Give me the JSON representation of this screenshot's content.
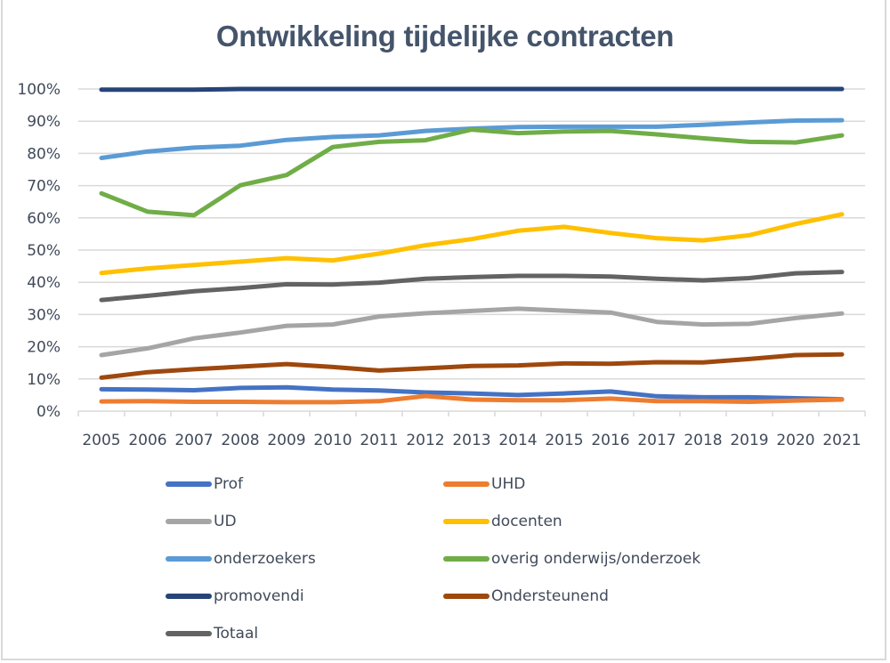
{
  "chart_data": {
    "type": "line",
    "title": "Ontwikkeling tijdelijke contracten",
    "xlabel": "",
    "ylabel": "",
    "ylim": [
      0,
      100
    ],
    "y_ticks": [
      "0%",
      "10%",
      "20%",
      "30%",
      "40%",
      "50%",
      "60%",
      "70%",
      "80%",
      "90%",
      "100%"
    ],
    "y_tick_values": [
      0,
      10,
      20,
      30,
      40,
      50,
      60,
      70,
      80,
      90,
      100
    ],
    "grid": true,
    "legend_position": "bottom",
    "categories": [
      "2005",
      "2006",
      "2007",
      "2008",
      "2009",
      "2010",
      "2011",
      "2012",
      "2013",
      "2014",
      "2015",
      "2016",
      "2017",
      "2018",
      "2019",
      "2020",
      "2021"
    ],
    "series": [
      {
        "name": "Prof",
        "color": "#4472c4",
        "values": [
          6.8,
          6.7,
          6.5,
          7.2,
          7.4,
          6.7,
          6.4,
          5.8,
          5.5,
          5.0,
          5.5,
          6.1,
          4.6,
          4.3,
          4.3,
          4.0,
          3.7
        ]
      },
      {
        "name": "UHD",
        "color": "#ed7d31",
        "values": [
          3.0,
          3.1,
          2.9,
          2.9,
          2.8,
          2.8,
          3.1,
          4.7,
          3.6,
          3.4,
          3.4,
          3.9,
          3.1,
          3.1,
          2.9,
          3.3,
          3.6
        ]
      },
      {
        "name": "UD",
        "color": "#a5a5a5",
        "values": [
          17.4,
          19.5,
          22.6,
          24.4,
          26.5,
          26.9,
          29.4,
          30.4,
          31.1,
          31.8,
          31.2,
          30.6,
          27.7,
          26.9,
          27.1,
          28.9,
          30.3
        ]
      },
      {
        "name": "docenten",
        "color": "#ffc000",
        "values": [
          42.9,
          44.3,
          45.4,
          46.4,
          47.5,
          46.8,
          48.9,
          51.5,
          53.4,
          56.0,
          57.2,
          55.3,
          53.7,
          53.0,
          54.6,
          58.1,
          61.1
        ]
      },
      {
        "name": "onderzoekers",
        "color": "#5b9bd5",
        "values": [
          78.6,
          80.6,
          81.8,
          82.4,
          84.2,
          85.1,
          85.6,
          87.0,
          87.7,
          88.2,
          88.3,
          88.3,
          88.3,
          88.9,
          89.6,
          90.2,
          90.3
        ]
      },
      {
        "name": "overig onderwijs/onderzoek",
        "color": "#70ad47",
        "values": [
          67.6,
          61.9,
          60.8,
          70.1,
          73.3,
          82.0,
          83.6,
          84.1,
          87.4,
          86.3,
          86.8,
          87.0,
          85.9,
          84.7,
          83.6,
          83.4,
          85.6
        ]
      },
      {
        "name": "promovendi",
        "color": "#264478",
        "values": [
          99.8,
          99.8,
          99.8,
          100,
          100,
          100,
          100,
          100,
          100,
          100,
          100,
          100,
          100,
          100,
          100,
          100,
          100
        ]
      },
      {
        "name": "Ondersteunend",
        "color": "#9e480e",
        "values": [
          10.4,
          12.1,
          13.0,
          13.8,
          14.6,
          13.7,
          12.6,
          13.3,
          14.0,
          14.2,
          14.8,
          14.7,
          15.2,
          15.1,
          16.2,
          17.4,
          17.6
        ]
      },
      {
        "name": "Totaal",
        "color": "#636363",
        "values": [
          34.5,
          35.8,
          37.2,
          38.2,
          39.4,
          39.3,
          39.9,
          41.1,
          41.6,
          42.0,
          42.0,
          41.8,
          41.1,
          40.6,
          41.3,
          42.8,
          43.2
        ]
      }
    ]
  }
}
